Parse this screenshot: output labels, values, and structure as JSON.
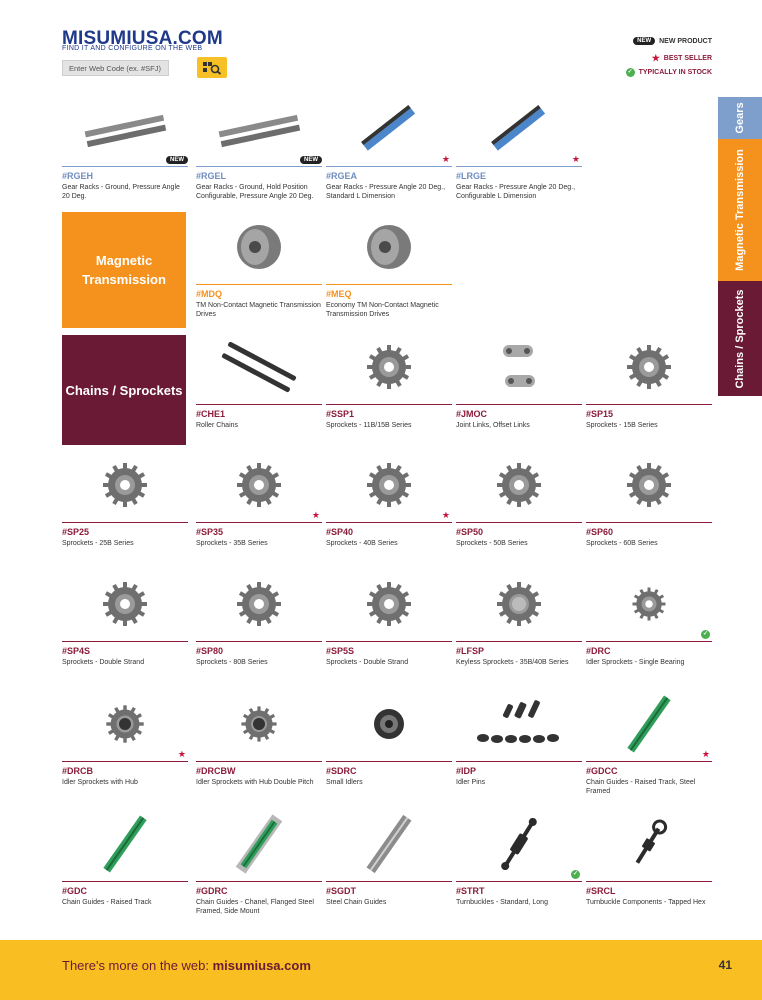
{
  "header": {
    "brand": "MISUMIUSA.COM",
    "tagline": "FIND IT AND CONFIGURE ON THE WEB",
    "search_placeholder": "Enter Web Code (ex. #SFJ)",
    "search_icon": "search-icon"
  },
  "legend": {
    "new_badge": "NEW",
    "new_label": "NEW PRODUCT",
    "best_label": "BEST SELLER",
    "stock_label": "TYPICALLY IN STOCK"
  },
  "side_tabs": [
    "Gears",
    "Magnetic Transmission",
    "Chains / Sprockets"
  ],
  "categories": {
    "magnetic": "Magnetic Transmission",
    "chains": "Chains / Sprockets"
  },
  "products": {
    "rgeh": {
      "code": "#RGEH",
      "desc": "Gear Racks - Ground, Pressure Angle 20 Deg."
    },
    "rgel": {
      "code": "#RGEL",
      "desc": "Gear Racks - Ground, Hold Position Configurable, Pressure Angle 20 Deg."
    },
    "rgea": {
      "code": "#RGEA",
      "desc": "Gear Racks - Pressure Angle 20 Deg., Standard L Dimension"
    },
    "lrge": {
      "code": "#LRGE",
      "desc": "Gear Racks - Pressure Angle 20 Deg., Configurable L Dimension"
    },
    "mdq": {
      "code": "#MDQ",
      "desc": "TM Non-Contact Magnetic Transmission Drives"
    },
    "meq": {
      "code": "#MEQ",
      "desc": "Economy TM Non-Contact Magnetic Transmission Drives"
    },
    "che1": {
      "code": "#CHE1",
      "desc": "Roller Chains"
    },
    "ssp1": {
      "code": "#SSP1",
      "desc": "Sprockets - 11B/15B Series"
    },
    "jmoc": {
      "code": "#JMOC",
      "desc": "Joint Links, Offset Links"
    },
    "sp15": {
      "code": "#SP15",
      "desc": "Sprockets - 15B Series"
    },
    "sp25": {
      "code": "#SP25",
      "desc": "Sprockets - 25B Series"
    },
    "sp35": {
      "code": "#SP35",
      "desc": "Sprockets - 35B Series"
    },
    "sp40": {
      "code": "#SP40",
      "desc": "Sprockets - 40B Series"
    },
    "sp50": {
      "code": "#SP50",
      "desc": "Sprockets - 50B Series"
    },
    "sp60": {
      "code": "#SP60",
      "desc": "Sprockets - 60B Series"
    },
    "sp4s": {
      "code": "#SP4S",
      "desc": "Sprockets - Double Strand"
    },
    "sp80": {
      "code": "#SP80",
      "desc": "Sprockets - 80B Series"
    },
    "sp5s": {
      "code": "#SP5S",
      "desc": "Sprockets - Double Strand"
    },
    "lfsp": {
      "code": "#LFSP",
      "desc": "Keyless Sprockets - 35B/40B Series"
    },
    "drc": {
      "code": "#DRC",
      "desc": "Idler Sprockets - Single Bearing"
    },
    "drcb": {
      "code": "#DRCB",
      "desc": "Idler Sprockets with Hub"
    },
    "drcbw": {
      "code": "#DRCBW",
      "desc": "Idler Sprockets with Hub Double Pitch"
    },
    "sdrc": {
      "code": "#SDRC",
      "desc": "Small Idlers"
    },
    "idp": {
      "code": "#IDP",
      "desc": "Idler Pins"
    },
    "gdcc": {
      "code": "#GDCC",
      "desc": "Chain Guides - Raised Track, Steel Framed"
    },
    "gdc": {
      "code": "#GDC",
      "desc": "Chain Guides - Raised Track"
    },
    "gdrc": {
      "code": "#GDRC",
      "desc": "Chain Guides - Chanel, Flanged Steel Framed, Side Mount"
    },
    "sgdt": {
      "code": "#SGDT",
      "desc": "Steel Chain Guides"
    },
    "strt": {
      "code": "#STRT",
      "desc": "Turnbuckles - Standard, Long"
    },
    "srcl": {
      "code": "#SRCL",
      "desc": "Turnbuckle Components - Tapped Hex"
    }
  },
  "footer": {
    "prefix": "There's more on the web:",
    "url": "misumiusa.com",
    "page_number": "41"
  },
  "colors": {
    "brand_blue": "#1f3a8a",
    "maroon": "#6b1a35",
    "orange": "#f5921e",
    "gear_blue": "#7e9ecb",
    "footer_yellow": "#f9bf22"
  }
}
